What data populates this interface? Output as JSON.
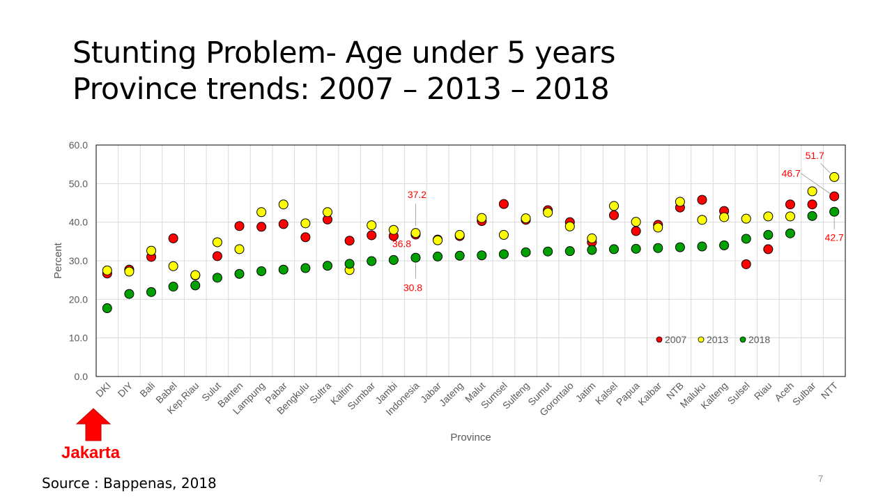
{
  "slide": {
    "title_line1": "Stunting Problem- Age under 5 years",
    "title_line2": "Province trends: 2007 – 2013 – 2018",
    "callout": "Jakarta",
    "source": "Source : Bappenas, 2018",
    "page_number": "7"
  },
  "chart_data": {
    "type": "scatter",
    "title": "",
    "xlabel": "Province",
    "ylabel": "Percent",
    "ylim": [
      0,
      60
    ],
    "yticks": [
      "0.0",
      "10.0",
      "20.0",
      "30.0",
      "40.0",
      "50.0",
      "60.0"
    ],
    "grid": true,
    "legend_position": "bottom-right",
    "categories": [
      "DKI",
      "DIY",
      "Bali",
      "Babel",
      "Kep.Riau",
      "Sulut",
      "Banten",
      "Lampung",
      "Pabar",
      "Bengkulu",
      "Sultra",
      "Kaltim",
      "Sumbar",
      "Jambi",
      "Indonesia",
      "Jabar",
      "Jateng",
      "Malut",
      "Sumsel",
      "Sulteng",
      "Sumut",
      "Gorontalo",
      "Jatim",
      "Kalsel",
      "Papua",
      "Kalbar",
      "NTB",
      "Maluku",
      "Kalteng",
      "Sulsel",
      "Riau",
      "Aceh",
      "Sulbar",
      "NTT"
    ],
    "series": [
      {
        "name": "2007",
        "color": "#ff0000",
        "values": [
          26.7,
          27.7,
          31.0,
          35.8,
          26.2,
          31.2,
          39.0,
          38.8,
          39.5,
          36.1,
          40.7,
          35.2,
          36.6,
          36.4,
          36.8,
          35.5,
          36.4,
          40.3,
          44.7,
          40.6,
          43.1,
          40.0,
          34.8,
          41.8,
          37.7,
          39.3,
          43.8,
          45.8,
          42.9,
          29.1,
          33.0,
          44.6,
          44.6,
          46.7
        ]
      },
      {
        "name": "2013",
        "color": "#ffff00",
        "values": [
          27.5,
          27.2,
          32.6,
          28.6,
          26.3,
          34.8,
          33.0,
          42.6,
          44.6,
          39.7,
          42.6,
          27.6,
          39.2,
          38.0,
          37.2,
          35.3,
          36.7,
          41.1,
          36.7,
          41.0,
          42.5,
          38.9,
          35.8,
          44.2,
          40.1,
          38.6,
          45.3,
          40.6,
          41.3,
          40.9,
          41.5,
          41.5,
          48.0,
          51.7
        ]
      },
      {
        "name": "2018",
        "color": "#00a000",
        "values": [
          17.7,
          21.4,
          21.9,
          23.3,
          23.6,
          25.6,
          26.6,
          27.3,
          27.7,
          28.1,
          28.7,
          29.2,
          29.9,
          30.2,
          30.8,
          31.1,
          31.3,
          31.4,
          31.7,
          32.2,
          32.4,
          32.5,
          32.8,
          33.0,
          33.1,
          33.3,
          33.5,
          33.7,
          34.0,
          35.7,
          36.7,
          37.1,
          41.6,
          42.7
        ]
      }
    ],
    "annotations": [
      {
        "text": "37.2",
        "category": "Indonesia",
        "series": "2013"
      },
      {
        "text": "36.8",
        "category": "Indonesia",
        "series": "2007"
      },
      {
        "text": "30.8",
        "category": "Indonesia",
        "series": "2018"
      },
      {
        "text": "51.7",
        "category": "NTT",
        "series": "2013"
      },
      {
        "text": "46.7",
        "category": "NTT",
        "series": "2007"
      },
      {
        "text": "42.7",
        "category": "NTT",
        "series": "2018"
      }
    ]
  }
}
